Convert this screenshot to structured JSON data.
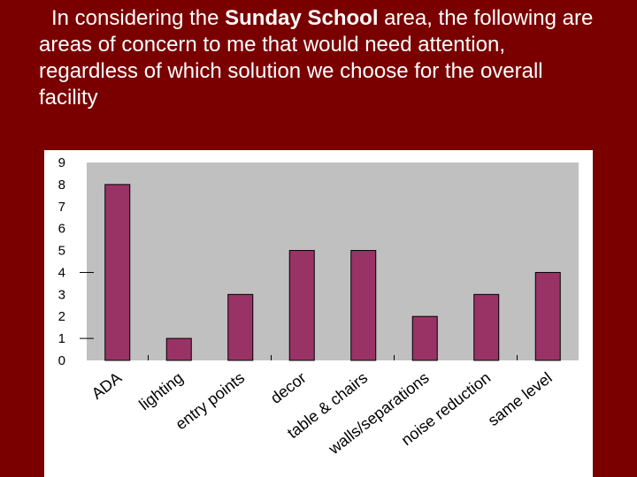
{
  "heading": {
    "part1": "In considering the ",
    "bold": "Sunday School",
    "part2": " area, the following are areas of concern to me that would need attention, regardless of which solution we choose for the overall facility"
  },
  "colors": {
    "background": "#7a0000",
    "bar_fill": "#993366",
    "plot_area": "#c0c0c0"
  },
  "chart_data": {
    "type": "bar",
    "categories": [
      "ADA",
      "lighting",
      "entry points",
      "decor",
      "table & chairs",
      "walls/separations",
      "noise reduction",
      "same level"
    ],
    "values": [
      8,
      1,
      3,
      5,
      5,
      2,
      3,
      4
    ],
    "title": "",
    "xlabel": "",
    "ylabel": "",
    "ylim": [
      0,
      9
    ],
    "yticks": [
      0,
      1,
      2,
      3,
      4,
      5,
      6,
      7,
      8,
      9
    ],
    "grid": false,
    "legend": "none"
  }
}
